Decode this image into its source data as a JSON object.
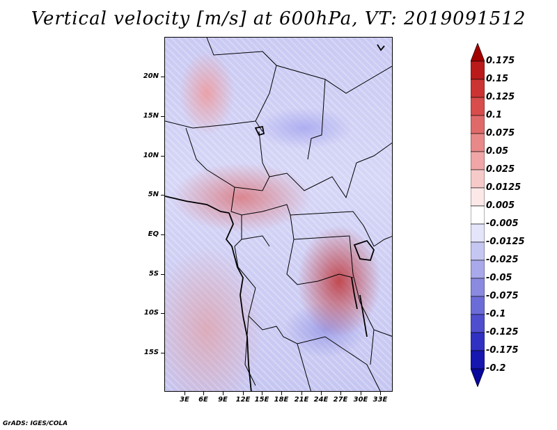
{
  "title": "Vertical velocity [m/s] at 600hPa, VT: 2019091512",
  "footer": "GrADS: IGES/COLA",
  "latitude_labels": [
    "20N",
    "15N",
    "10N",
    "5N",
    "EQ",
    "5S",
    "10S",
    "15S"
  ],
  "longitude_labels": [
    "3E",
    "6E",
    "9E",
    "12E",
    "15E",
    "18E",
    "21E",
    "24E",
    "27E",
    "30E",
    "33E"
  ],
  "colorbar": {
    "labels": [
      "0.175",
      "0.15",
      "0.125",
      "0.1",
      "0.075",
      "0.05",
      "0.025",
      "0.0125",
      "0.005",
      "-0.005",
      "-0.0125",
      "-0.025",
      "-0.05",
      "-0.075",
      "-0.1",
      "-0.125",
      "-0.175",
      "-0.2"
    ],
    "colors": [
      "#a00000",
      "#bb1a1a",
      "#cc3333",
      "#d84c4c",
      "#e06a6a",
      "#e88888",
      "#f0a6a6",
      "#f7caca",
      "#fde8e8",
      "#ffffff",
      "#e4e4fb",
      "#c6c6f2",
      "#a8a8ea",
      "#8a8ae1",
      "#6c6cd8",
      "#4e4ece",
      "#3030c2",
      "#1616b0",
      "#08089a"
    ]
  }
}
